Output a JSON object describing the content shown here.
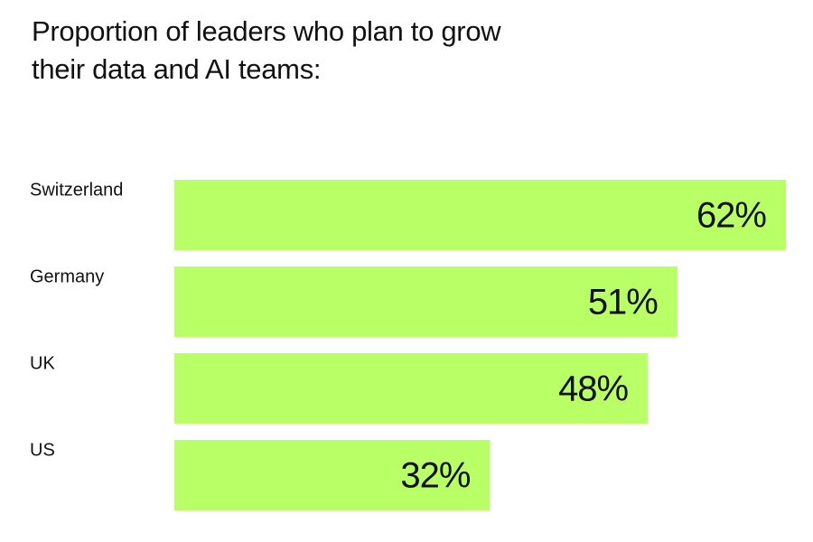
{
  "chart_data": {
    "type": "bar",
    "orientation": "horizontal",
    "title": "Proportion of leaders who plan to grow their data and AI teams:",
    "categories": [
      "Switzerland",
      "Germany",
      "UK",
      "US"
    ],
    "values": [
      62,
      51,
      48,
      32
    ],
    "value_labels": [
      "62%",
      "51%",
      "48%",
      "32%"
    ],
    "color": "#b9ff66"
  }
}
